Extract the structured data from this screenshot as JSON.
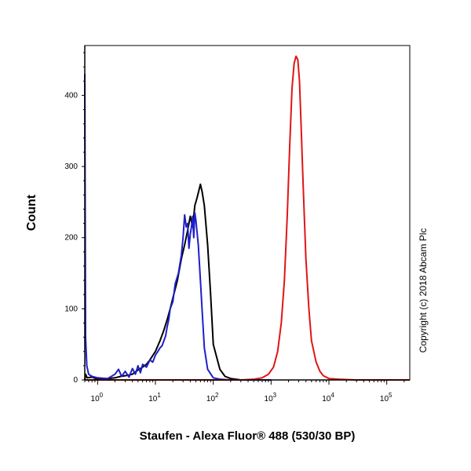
{
  "chart_data": {
    "type": "line",
    "title": "",
    "xlabel": "Staufen - Alexa Fluor® 488 (530/30 BP)",
    "ylabel": "Count",
    "x_scale": "log",
    "xlim": [
      0.6,
      250000
    ],
    "ylim": [
      0,
      470
    ],
    "grid": false,
    "legend": "none",
    "x_ticks": [
      {
        "value": 1,
        "base": "10",
        "exp": "0"
      },
      {
        "value": 10,
        "base": "10",
        "exp": "1"
      },
      {
        "value": 100,
        "base": "10",
        "exp": "2"
      },
      {
        "value": 1000,
        "base": "10",
        "exp": "3"
      },
      {
        "value": 10000,
        "base": "10",
        "exp": "4"
      },
      {
        "value": 100000,
        "base": "10",
        "exp": "5"
      }
    ],
    "y_ticks": [
      {
        "value": 0,
        "label": "0"
      },
      {
        "value": 100,
        "label": "100"
      },
      {
        "value": 200,
        "label": "200"
      },
      {
        "value": 300,
        "label": "300"
      },
      {
        "value": 400,
        "label": "400"
      }
    ],
    "series": [
      {
        "color": "#000000",
        "x": [
          0.6,
          0.62,
          0.66,
          0.8,
          1.0,
          1.5,
          2.0,
          2.5,
          3.0,
          3.5,
          4.0,
          5.0,
          6.0,
          7.0,
          8.0,
          10,
          12,
          14,
          16,
          18,
          20,
          24,
          28,
          32,
          36,
          40,
          44,
          48,
          52,
          56,
          60,
          64,
          70,
          80,
          90,
          100,
          130,
          160,
          200,
          300,
          500,
          1000
        ],
        "y": [
          0,
          8,
          3,
          4,
          1,
          2,
          3,
          5,
          6,
          7,
          8,
          14,
          18,
          22,
          28,
          40,
          55,
          70,
          85,
          100,
          115,
          140,
          170,
          190,
          210,
          230,
          215,
          245,
          255,
          265,
          275,
          265,
          245,
          190,
          120,
          50,
          15,
          5,
          2,
          0,
          0,
          0
        ]
      },
      {
        "color": "#1f1fc8",
        "x": [
          0.6,
          0.62,
          0.65,
          0.7,
          0.8,
          1.0,
          1.5,
          2.0,
          2.3,
          2.6,
          3.0,
          3.5,
          4.0,
          4.5,
          5.0,
          5.5,
          6.0,
          7.0,
          8.0,
          9.0,
          10,
          11,
          12,
          13,
          14,
          15,
          16,
          17,
          18,
          20,
          22,
          25,
          28,
          30,
          32,
          34,
          36,
          38,
          40,
          42,
          44,
          46,
          48,
          50,
          55,
          60,
          65,
          70,
          80,
          100,
          130,
          200,
          400,
          1000
        ],
        "y": [
          430,
          60,
          20,
          8,
          5,
          3,
          2,
          8,
          15,
          5,
          12,
          4,
          16,
          8,
          20,
          10,
          22,
          18,
          28,
          25,
          35,
          40,
          45,
          48,
          55,
          62,
          75,
          85,
          100,
          110,
          135,
          150,
          175,
          200,
          232,
          215,
          220,
          185,
          205,
          215,
          230,
          200,
          235,
          225,
          190,
          140,
          90,
          45,
          15,
          3,
          1,
          0,
          0,
          0
        ]
      },
      {
        "color": "#e01515",
        "x": [
          0.6,
          10,
          100,
          300,
          500,
          700,
          900,
          1100,
          1300,
          1500,
          1700,
          1900,
          2100,
          2300,
          2500,
          2700,
          2900,
          3100,
          3300,
          3600,
          4000,
          4500,
          5000,
          6000,
          7000,
          8000,
          10000,
          15000,
          30000,
          100000,
          250000
        ],
        "y": [
          0,
          0,
          0,
          0,
          1,
          3,
          8,
          18,
          40,
          80,
          140,
          230,
          330,
          410,
          445,
          455,
          450,
          420,
          360,
          270,
          170,
          100,
          55,
          25,
          12,
          6,
          2,
          1,
          0,
          0,
          0
        ]
      }
    ]
  },
  "side_text": "Copyright (c) 2018 Abcam Plc"
}
